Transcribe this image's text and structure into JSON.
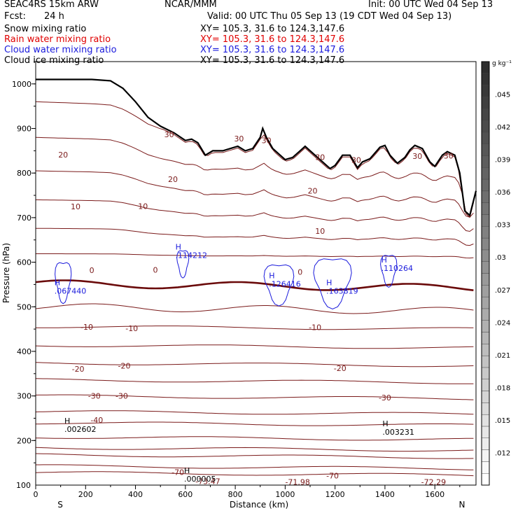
{
  "header": {
    "model": "SEAC4RS 15km ARW",
    "org": "NCAR/MMM",
    "init": "Init: 00 UTC Wed 04 Sep 13",
    "fcst_label": "Fcst:",
    "fcst_value": "24 h",
    "valid": "Valid: 00 UTC Thu 05 Sep 13 (19 CDT Wed 04 Sep 13)",
    "fields": [
      {
        "name": "Snow mixing ratio",
        "color": "#000000",
        "xy": "XY= 105.3, 31.6 to 124.3,147.6"
      },
      {
        "name": "Rain water mixing ratio",
        "color": "#e00000",
        "xy": "XY= 105.3, 31.6 to 124.3,147.6"
      },
      {
        "name": "Cloud water mixing ratio",
        "color": "#1a1adc",
        "xy": "XY= 105.3, 31.6 to 124.3,147.6"
      },
      {
        "name": "Cloud ice mixing ratio",
        "color": "#000000",
        "xy": "XY= 105.3, 31.6 to 124.3,147.6"
      }
    ]
  },
  "chart_data": {
    "type": "cross-section contour",
    "xlabel": "Distance (km)",
    "ylabel": "Pressure (hPa)",
    "xlim": [
      0,
      1765
    ],
    "ylim": [
      1050,
      100
    ],
    "x_ticks": [
      0,
      200,
      400,
      600,
      800,
      1000,
      1200,
      1400,
      1600
    ],
    "y_ticks": [
      200,
      300,
      400,
      500,
      600,
      700,
      800,
      900,
      1000
    ],
    "y_top_label": "100",
    "endpoint_labels": {
      "left": "S",
      "right": "N"
    },
    "colorbar": {
      "unit": "g kg⁻¹",
      "levels": [
        0.012,
        0.015,
        0.018,
        0.021,
        0.024,
        0.027,
        0.03,
        0.033,
        0.036,
        0.039,
        0.042,
        0.045
      ],
      "labels": [
        ".012",
        ".015",
        ".018",
        ".021",
        ".024",
        ".027",
        ".03",
        ".033",
        ".036",
        ".039",
        ".042",
        ".045"
      ],
      "range": [
        0.009,
        0.048
      ]
    },
    "temperature_colors": {
      "isotherm": "#7a1a1a",
      "freezing": "#6a0a0a",
      "cloud": "#1a1adc",
      "terrain": "#000000"
    },
    "isotherm_labels": [
      {
        "text": "-70",
        "x": 570,
        "p": 129
      },
      {
        "text": "-70",
        "x": 1190,
        "p": 121
      },
      {
        "text": "-40",
        "x": 245,
        "p": 246
      },
      {
        "text": "-30",
        "x": 235,
        "p": 300
      },
      {
        "text": "-30",
        "x": 345,
        "p": 300
      },
      {
        "text": "-30",
        "x": 1400,
        "p": 296
      },
      {
        "text": "-20",
        "x": 170,
        "p": 361
      },
      {
        "text": "-20",
        "x": 355,
        "p": 368
      },
      {
        "text": "-20",
        "x": 1220,
        "p": 362
      },
      {
        "text": "-10",
        "x": 205,
        "p": 455
      },
      {
        "text": "-10",
        "x": 385,
        "p": 452
      },
      {
        "text": "-10",
        "x": 1120,
        "p": 454
      },
      {
        "text": "0",
        "x": 225,
        "p": 582
      },
      {
        "text": "0",
        "x": 480,
        "p": 583
      },
      {
        "text": "0",
        "x": 1060,
        "p": 578
      },
      {
        "text": "10",
        "x": 160,
        "p": 725
      },
      {
        "text": "10",
        "x": 430,
        "p": 726
      },
      {
        "text": "10",
        "x": 1140,
        "p": 670
      },
      {
        "text": "20",
        "x": 110,
        "p": 841
      },
      {
        "text": "20",
        "x": 550,
        "p": 786
      },
      {
        "text": "20",
        "x": 1110,
        "p": 760
      },
      {
        "text": "30",
        "x": 535,
        "p": 887
      },
      {
        "text": "30",
        "x": 815,
        "p": 877
      },
      {
        "text": "30",
        "x": 925,
        "p": 873
      },
      {
        "text": "30",
        "x": 1140,
        "p": 836
      },
      {
        "text": "30",
        "x": 1285,
        "p": 829
      },
      {
        "text": "30",
        "x": 1530,
        "p": 838
      },
      {
        "text": "30",
        "x": 1655,
        "p": 839
      }
    ],
    "extrema_labels": [
      {
        "marker": "H",
        "value": ".000005",
        "x": 595,
        "p": 127
      },
      {
        "marker": "H",
        "value": ".002602",
        "x": 115,
        "p": 238
      },
      {
        "marker": "H",
        "value": ".003231",
        "x": 1390,
        "p": 232
      },
      {
        "marker": "H",
        "value": ".067440",
        "x": 75,
        "p": 548
      },
      {
        "marker": "H",
        "value": ".114212",
        "x": 560,
        "p": 628
      },
      {
        "marker": "H",
        "value": ".126416",
        "x": 935,
        "p": 564
      },
      {
        "marker": "H",
        "value": ".163819",
        "x": 1165,
        "p": 548
      },
      {
        "marker": "H",
        "value": ".110264",
        "x": 1385,
        "p": 599
      }
    ],
    "top_values": [
      {
        "text": "-73.47",
        "x": 690,
        "p": 109
      },
      {
        "text": "-71.98",
        "x": 1050,
        "p": 107
      },
      {
        "text": "-72.29",
        "x": 1595,
        "p": 107
      }
    ],
    "isotherm_levels_surface_p": [
      128,
      143,
      168,
      184,
      208,
      240,
      265,
      300,
      336,
      374,
      414,
      456,
      500,
      552,
      619,
      676,
      740,
      805,
      880,
      960
    ]
  }
}
